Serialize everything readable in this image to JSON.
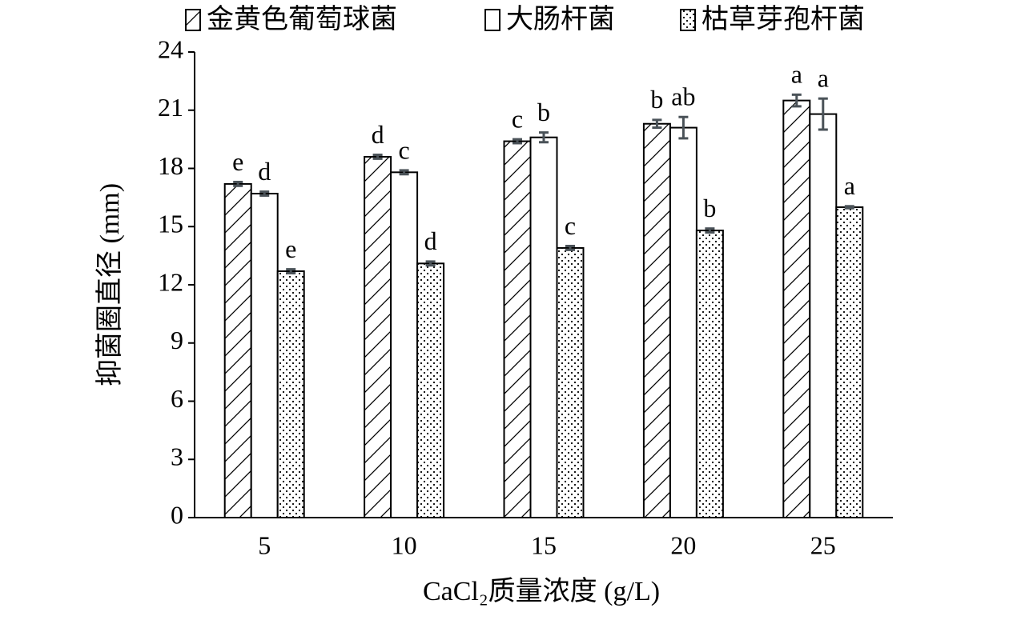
{
  "chart_data": {
    "type": "bar",
    "x_label": "CaCl₂质量浓度 (g/L)",
    "y_label": "抑菌圈直径 (mm)",
    "categories": [
      "5",
      "10",
      "15",
      "20",
      "25"
    ],
    "ylim": [
      0,
      24
    ],
    "yticks": [
      0,
      3,
      6,
      9,
      12,
      15,
      18,
      21,
      24
    ],
    "series": [
      {
        "name": "金黄色葡萄球菌",
        "color": "#000000",
        "pattern": "hatch",
        "values": [
          17.2,
          18.6,
          19.4,
          20.3,
          21.5
        ],
        "errors": [
          0.1,
          0.1,
          0.1,
          0.2,
          0.3
        ],
        "letters": [
          "e",
          "d",
          "c",
          "b",
          "a"
        ]
      },
      {
        "name": "大肠杆菌",
        "color": "#000000",
        "pattern": "none",
        "values": [
          16.7,
          17.8,
          19.6,
          20.1,
          20.8
        ],
        "errors": [
          0.1,
          0.1,
          0.25,
          0.55,
          0.8
        ],
        "letters": [
          "d",
          "c",
          "b",
          "ab",
          "a"
        ]
      },
      {
        "name": "枯草芽孢杆菌",
        "color": "#000000",
        "pattern": "dots",
        "values": [
          12.7,
          13.1,
          13.9,
          14.8,
          16.0
        ],
        "errors": [
          0.1,
          0.1,
          0.1,
          0.1,
          0.05
        ],
        "letters": [
          "e",
          "d",
          "c",
          "b",
          "a"
        ]
      }
    ]
  }
}
